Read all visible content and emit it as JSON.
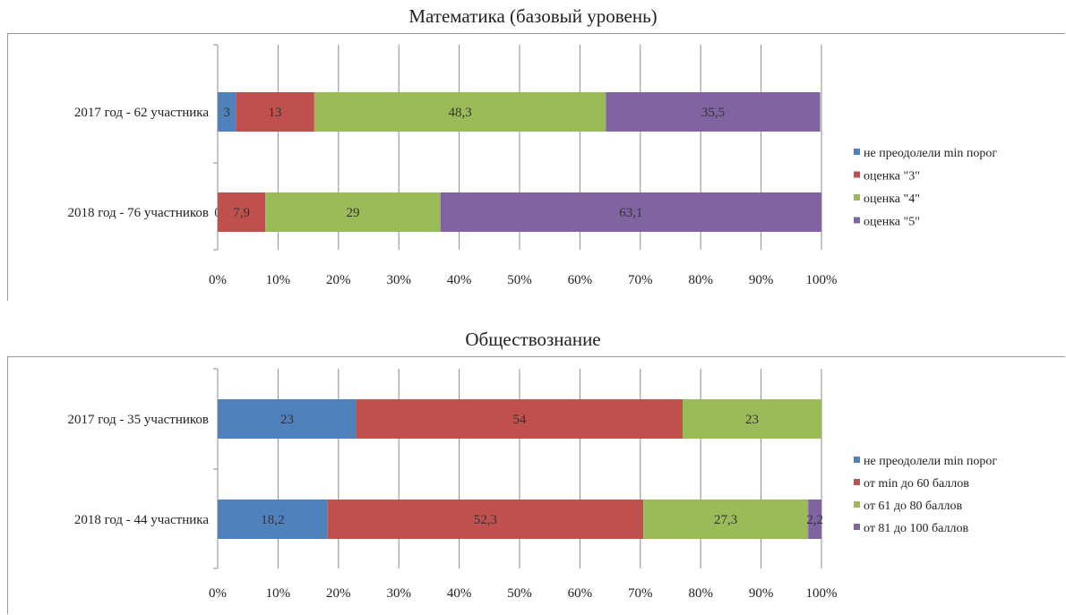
{
  "chart_data": [
    {
      "type": "bar",
      "orientation": "horizontal",
      "stacked": "percent",
      "title": "Математика (базовый уровень)",
      "categories": [
        "2017 год - 62 участника",
        "2018 год - 76 участников"
      ],
      "series": [
        {
          "name": "не преодолели min порог",
          "color": "#4f81bd",
          "values": [
            3,
            0
          ],
          "labels": [
            "3",
            "0"
          ]
        },
        {
          "name": "оценка \"3\"",
          "color": "#c0504d",
          "values": [
            13,
            7.9
          ],
          "labels": [
            "13",
            "7,9"
          ]
        },
        {
          "name": "оценка \"4\"",
          "color": "#9bbb59",
          "values": [
            48.3,
            29
          ],
          "labels": [
            "48,3",
            "29"
          ]
        },
        {
          "name": "оценка \"5\"",
          "color": "#8064a2",
          "values": [
            35.5,
            63.1
          ],
          "labels": [
            "35,5",
            "63,1"
          ]
        }
      ],
      "xticks": [
        "0%",
        "10%",
        "20%",
        "30%",
        "40%",
        "50%",
        "60%",
        "70%",
        "80%",
        "90%",
        "100%"
      ],
      "xlim": [
        0,
        100
      ],
      "grid": true,
      "legend": "right"
    },
    {
      "type": "bar",
      "orientation": "horizontal",
      "stacked": "percent",
      "title": "Обществознание",
      "categories": [
        "2017 год - 35 участников",
        "2018 год - 44 участника"
      ],
      "series": [
        {
          "name": "не преодолели min порог",
          "color": "#4f81bd",
          "values": [
            23,
            18.2
          ],
          "labels": [
            "23",
            "18,2"
          ]
        },
        {
          "name": "от min до 60 баллов",
          "color": "#c0504d",
          "values": [
            54,
            52.3
          ],
          "labels": [
            "54",
            "52,3"
          ]
        },
        {
          "name": "от 61 до 80 баллов",
          "color": "#9bbb59",
          "values": [
            23,
            27.3
          ],
          "labels": [
            "23",
            "27,3"
          ]
        },
        {
          "name": "от 81 до 100 баллов",
          "color": "#8064a2",
          "values": [
            0,
            2.2
          ],
          "labels": [
            "",
            "2,2"
          ]
        }
      ],
      "xticks": [
        "0%",
        "10%",
        "20%",
        "30%",
        "40%",
        "50%",
        "60%",
        "70%",
        "80%",
        "90%",
        "100%"
      ],
      "xlim": [
        0,
        100
      ],
      "grid": true,
      "legend": "right"
    }
  ]
}
